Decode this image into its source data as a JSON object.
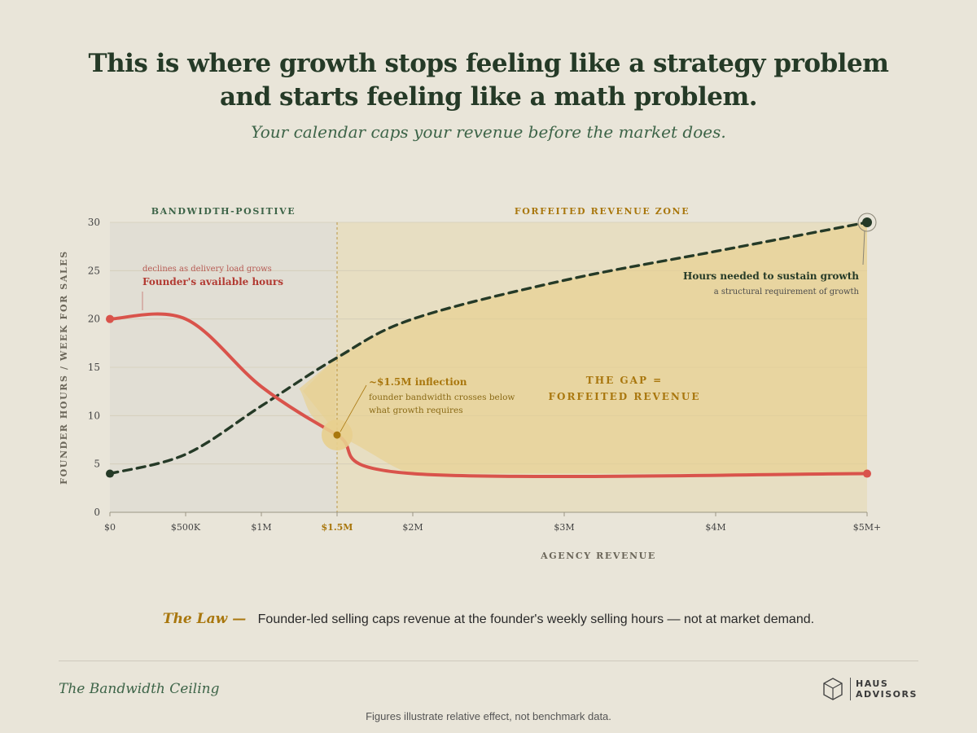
{
  "header": {
    "headline_line1": "This is where growth stops feeling like a strategy problem",
    "headline_line2": "and starts feeling like a math problem.",
    "subhead": "Your calendar caps your revenue before the market does."
  },
  "chart_data": {
    "type": "line",
    "xlabel": "AGENCY REVENUE",
    "ylabel": "FOUNDER HOURS / WEEK FOR SALES",
    "x_unit": "revenue ($M)",
    "xlim": [
      0,
      5
    ],
    "ylim": [
      0,
      30
    ],
    "x_ticks": [
      {
        "value": 0,
        "label": "$0"
      },
      {
        "value": 0.5,
        "label": "$500K"
      },
      {
        "value": 1,
        "label": "$1M"
      },
      {
        "value": 1.5,
        "label": "$1.5M"
      },
      {
        "value": 2,
        "label": "$2M"
      },
      {
        "value": 3,
        "label": "$3M"
      },
      {
        "value": 4,
        "label": "$4M"
      },
      {
        "value": 5,
        "label": "$5M+"
      }
    ],
    "y_ticks": [
      0,
      5,
      10,
      15,
      20,
      25,
      30
    ],
    "series": [
      {
        "name": "Founder's available hours",
        "note": "declines as delivery load grows",
        "style": "solid",
        "color": "#d9534b",
        "x": [
          0,
          0.5,
          1,
          1.5,
          2,
          5
        ],
        "y": [
          20,
          20,
          13,
          8,
          4,
          4
        ]
      },
      {
        "name": "Hours needed to sustain growth",
        "note": "a structural requirement of growth",
        "style": "dashed",
        "color": "#253a27",
        "x": [
          0,
          0.5,
          1,
          1.5,
          2,
          3,
          4,
          5
        ],
        "y": [
          4,
          6,
          11,
          16,
          20,
          24,
          27,
          30
        ]
      }
    ],
    "zones": [
      {
        "label": "BANDWIDTH-POSITIVE",
        "from": 0,
        "to": 1.5,
        "color": "#dfddd2"
      },
      {
        "label": "FORFEITED REVENUE ZONE",
        "from": 1.5,
        "to": 5,
        "color": "#e6d8ae"
      }
    ],
    "inflection": {
      "x": 1.5,
      "y": 8,
      "title": "~$1.5M inflection",
      "line1": "founder bandwidth crosses below",
      "line2": "what growth requires"
    },
    "gap_label_line1": "THE GAP =",
    "gap_label_line2": "FORFEITED REVENUE",
    "colors": {
      "accent": "#a9770e",
      "dark": "#253a27",
      "red": "#d9534b",
      "gap": "#e8cf8e"
    }
  },
  "law": {
    "label": "The Law —",
    "text": "Founder-led selling caps revenue at the founder's weekly selling hours — not at market demand."
  },
  "footer": {
    "series_title": "The Bandwidth Ceiling",
    "logo_line1": "HAUS",
    "logo_line2": "ADVISORS",
    "logo_icon": "hexagon-cube-icon",
    "footnote": "Figures illustrate relative effect, not benchmark data."
  }
}
